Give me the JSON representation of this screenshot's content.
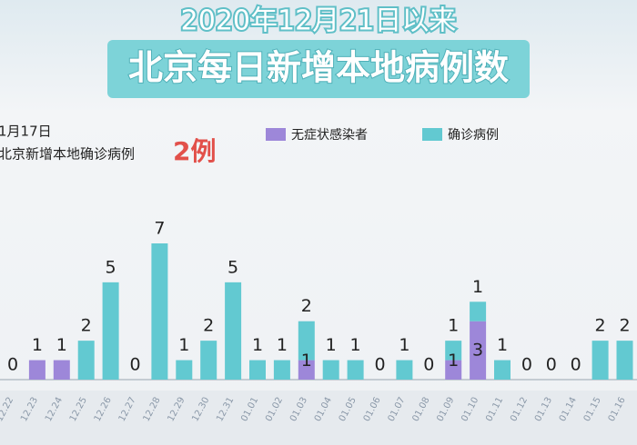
{
  "chart_data": {
    "type": "stacked-bar",
    "subtitle": "2020年12月21日以来",
    "title": "北京每日新增本地病例数",
    "annotation": {
      "date": "1月17日",
      "text": "北京新增本地确诊病例",
      "highlight": "2例"
    },
    "categories": [
      "12.22",
      "12.23",
      "12.24",
      "12.25",
      "12.26",
      "12.27",
      "12.28",
      "12.29",
      "12.30",
      "12.31",
      "01.01",
      "01.02",
      "01.03",
      "01.04",
      "01.05",
      "01.06",
      "01.07",
      "01.08",
      "01.09",
      "01.10",
      "01.11",
      "01.12",
      "01.13",
      "01.14",
      "01.15",
      "01.16"
    ],
    "series": [
      {
        "name": "无症状感染者",
        "color": "#9d87d9",
        "values": [
          0,
          1,
          1,
          0,
          0,
          0,
          0,
          0,
          0,
          0,
          0,
          0,
          1,
          0,
          0,
          0,
          0,
          0,
          1,
          3,
          0,
          0,
          0,
          0,
          0,
          0
        ]
      },
      {
        "name": "确诊病例",
        "color": "#62c9d1",
        "values": [
          0,
          0,
          0,
          2,
          5,
          0,
          7,
          1,
          2,
          5,
          1,
          1,
          2,
          1,
          1,
          0,
          1,
          0,
          1,
          1,
          1,
          0,
          0,
          0,
          2,
          2
        ]
      }
    ]
  }
}
